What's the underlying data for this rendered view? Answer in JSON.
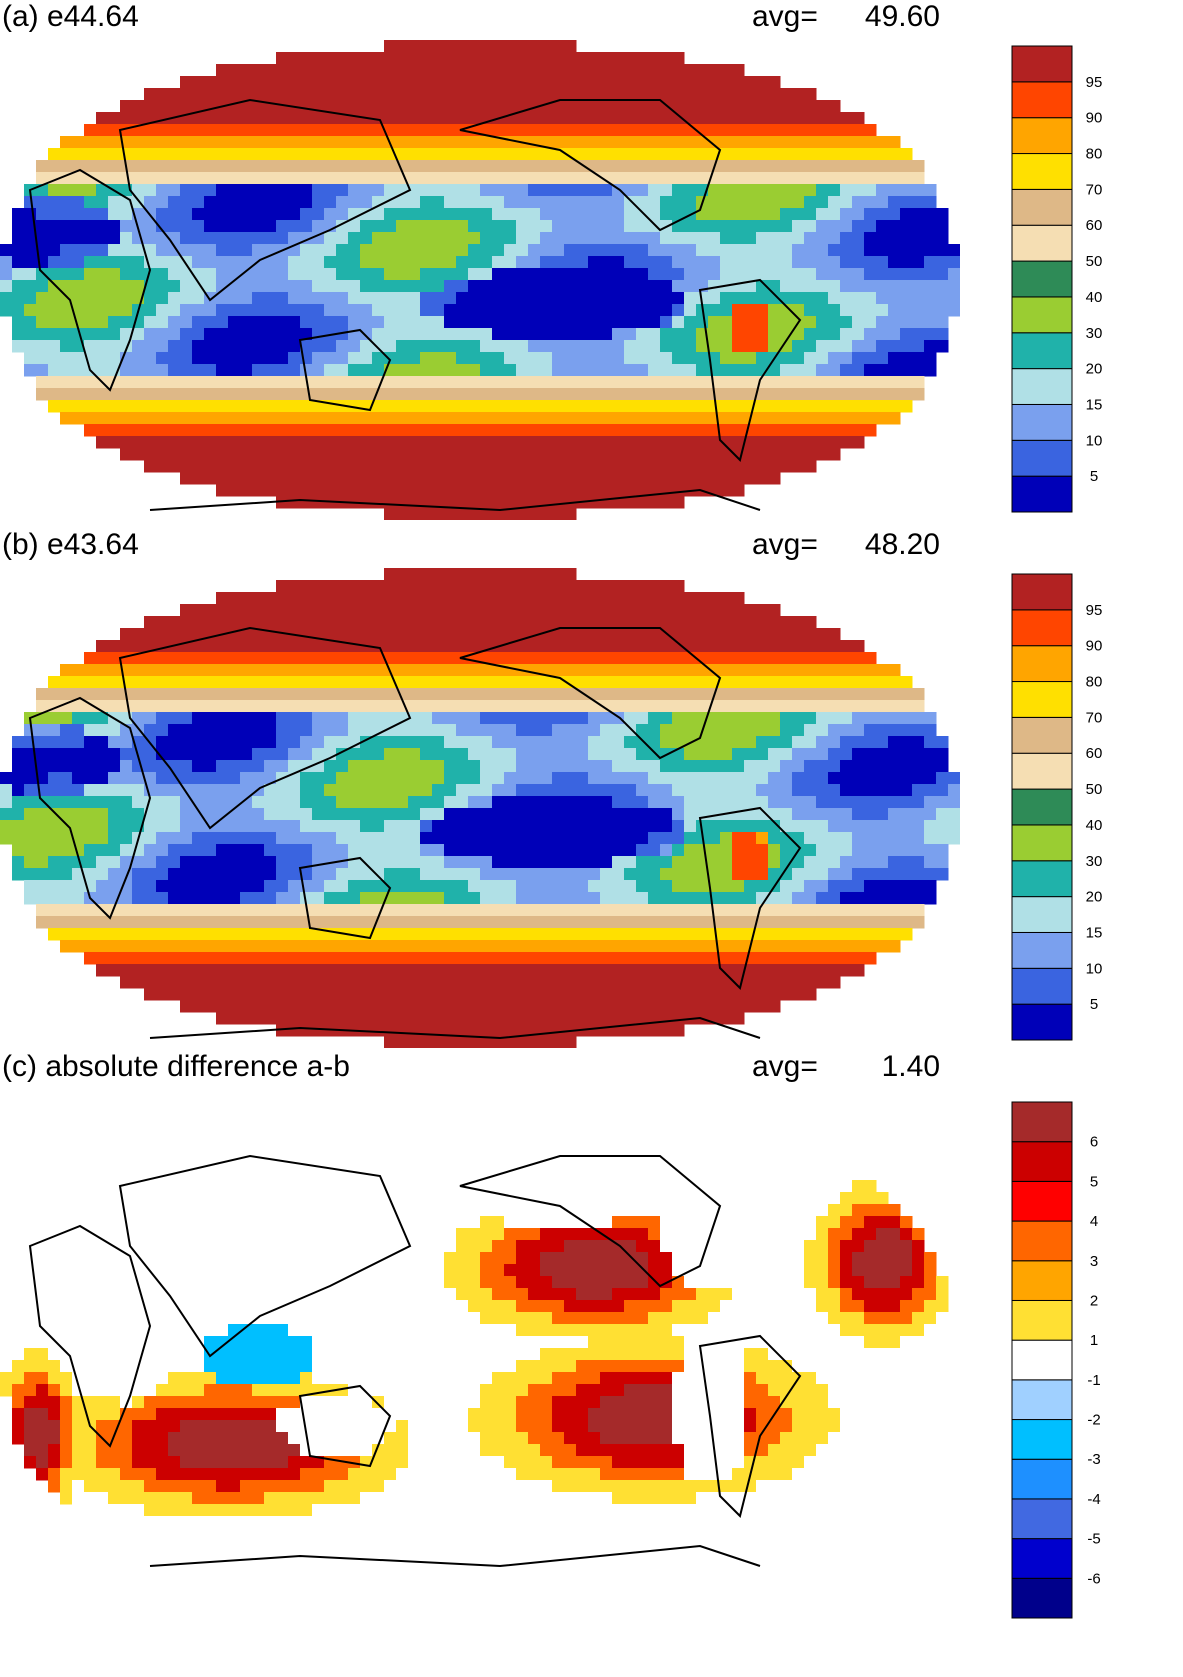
{
  "panels": [
    {
      "title": "(a) e44.64",
      "avg_label": "avg=",
      "avg_value": "49.60",
      "colorbar": {
        "colors": [
          "#0000b8",
          "#3a64e0",
          "#7aa0ee",
          "#b0e0e6",
          "#20b2aa",
          "#9acd32",
          "#2e8b57",
          "#f5deb3",
          "#deb887",
          "#ffe000",
          "#ffa500",
          "#ff4500",
          "#b22222"
        ],
        "labels": [
          "5",
          "10",
          "15",
          "20",
          "30",
          "40",
          "50",
          "60",
          "70",
          "80",
          "90",
          "95"
        ]
      }
    },
    {
      "title": "(b) e43.64",
      "avg_label": "avg=",
      "avg_value": "48.20",
      "colorbar": {
        "colors": [
          "#0000b8",
          "#3a64e0",
          "#7aa0ee",
          "#b0e0e6",
          "#20b2aa",
          "#9acd32",
          "#2e8b57",
          "#f5deb3",
          "#deb887",
          "#ffe000",
          "#ffa500",
          "#ff4500",
          "#b22222"
        ],
        "labels": [
          "5",
          "10",
          "15",
          "20",
          "30",
          "40",
          "50",
          "60",
          "70",
          "80",
          "90",
          "95"
        ]
      }
    },
    {
      "title": "(c) absolute difference a-b",
      "avg_label": "avg=",
      "avg_value": "1.40",
      "colorbar": {
        "colors": [
          "#00008b",
          "#0000cd",
          "#4169e1",
          "#1e90ff",
          "#00bfff",
          "#a0d0ff",
          "#ffffff",
          "#ffe033",
          "#ffa500",
          "#ff6600",
          "#ff0000",
          "#cc0000",
          "#a52a2a"
        ],
        "labels": [
          "-6",
          "-5",
          "-4",
          "-3",
          "-2",
          "-1",
          "1",
          "2",
          "3",
          "4",
          "5",
          "6"
        ]
      }
    }
  ]
}
